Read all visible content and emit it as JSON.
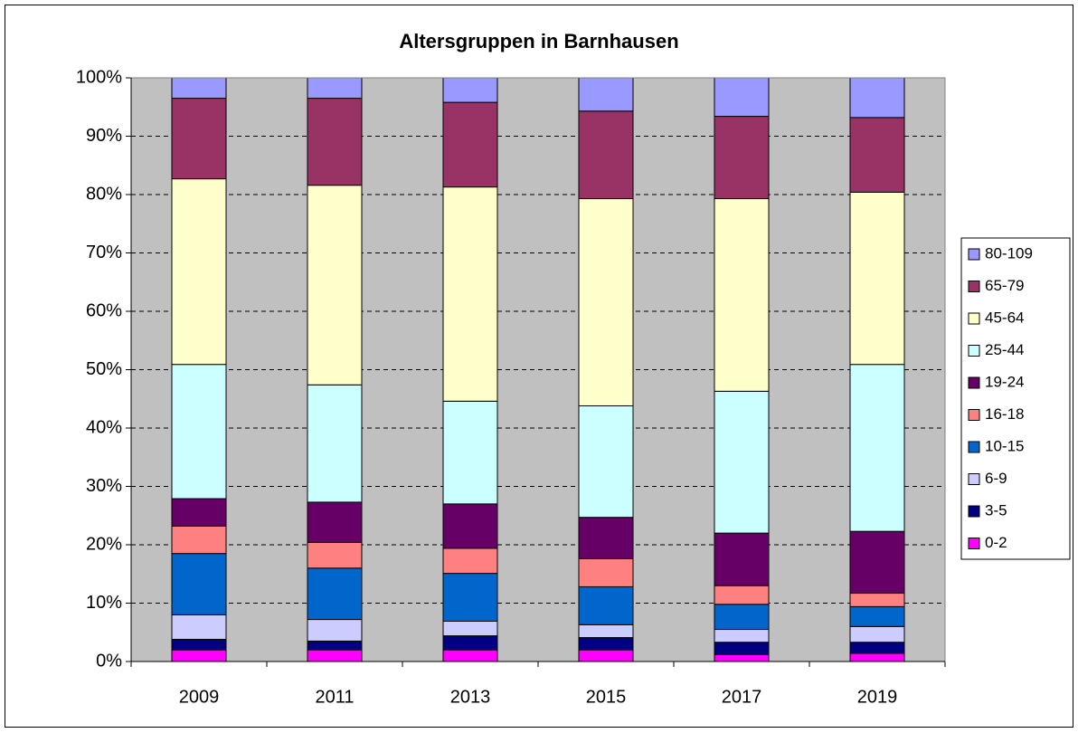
{
  "chart_data": {
    "type": "stacked-bar",
    "title": "Altersgruppen in Barnhausen",
    "categories": [
      "2009",
      "2011",
      "2013",
      "2015",
      "2017",
      "2019"
    ],
    "series": [
      {
        "name": "0-2",
        "color": "#ff00ff",
        "values": [
          2.0,
          2.0,
          2.0,
          2.0,
          1.2,
          1.4
        ]
      },
      {
        "name": "3-5",
        "color": "#000080",
        "values": [
          1.8,
          1.5,
          2.4,
          2.1,
          2.1,
          1.9
        ]
      },
      {
        "name": "6-9",
        "color": "#ccccff",
        "values": [
          4.2,
          3.7,
          2.5,
          2.2,
          2.2,
          2.7
        ]
      },
      {
        "name": "10-15",
        "color": "#0066cc",
        "values": [
          10.5,
          8.8,
          8.2,
          6.5,
          4.3,
          3.4
        ]
      },
      {
        "name": "16-18",
        "color": "#ff8080",
        "values": [
          4.7,
          4.4,
          4.3,
          4.8,
          3.2,
          2.3
        ]
      },
      {
        "name": "19-24",
        "color": "#660066",
        "values": [
          4.7,
          6.9,
          7.6,
          7.1,
          9.0,
          10.6
        ]
      },
      {
        "name": "25-44",
        "color": "#ccffff",
        "values": [
          23.0,
          20.1,
          17.6,
          19.1,
          24.3,
          28.6
        ]
      },
      {
        "name": "45-64",
        "color": "#ffffcc",
        "values": [
          31.8,
          34.2,
          36.7,
          35.5,
          33.0,
          29.5
        ]
      },
      {
        "name": "65-79",
        "color": "#993366",
        "values": [
          13.8,
          14.9,
          14.5,
          15.0,
          14.1,
          12.8
        ]
      },
      {
        "name": "80-109",
        "color": "#9999ff",
        "values": [
          3.5,
          3.5,
          4.2,
          5.7,
          6.6,
          6.8
        ]
      }
    ],
    "ylim": [
      0,
      100
    ],
    "yticks": [
      {
        "value": 0,
        "label": "0%"
      },
      {
        "value": 10,
        "label": "10%"
      },
      {
        "value": 20,
        "label": "20%"
      },
      {
        "value": 30,
        "label": "30%"
      },
      {
        "value": 40,
        "label": "40%"
      },
      {
        "value": 50,
        "label": "50%"
      },
      {
        "value": 60,
        "label": "60%"
      },
      {
        "value": 70,
        "label": "70%"
      },
      {
        "value": 80,
        "label": "80%"
      },
      {
        "value": 90,
        "label": "90%"
      },
      {
        "value": 100,
        "label": "100%"
      }
    ],
    "grid": true,
    "legend": "right",
    "plot_background": "#c0c0c0"
  }
}
